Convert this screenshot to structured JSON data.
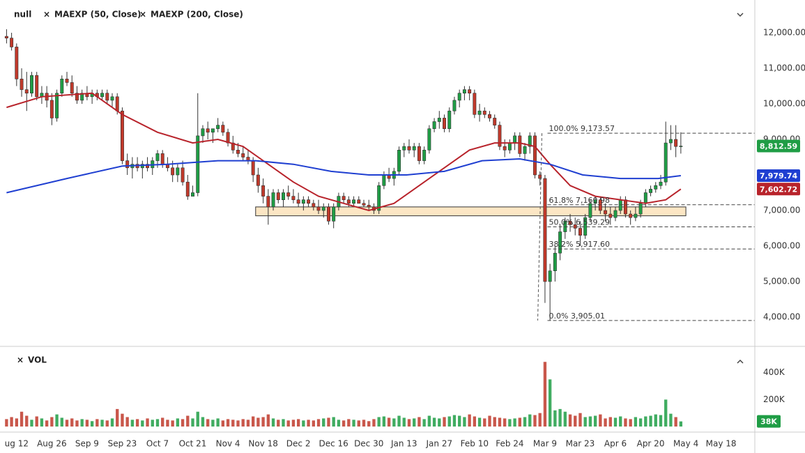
{
  "chart_data": {
    "type": "candlestick",
    "symbol": "null",
    "xlim": [
      -6.6,
      293.4
    ],
    "ylim": [
      3176,
      12922
    ],
    "xticks": [
      {
        "value": 0,
        "label": "ug 12"
      },
      {
        "value": 14,
        "label": "Aug 26"
      },
      {
        "value": 28,
        "label": "Sep 9"
      },
      {
        "value": 42,
        "label": "Sep 23"
      },
      {
        "value": 56,
        "label": "Oct 7"
      },
      {
        "value": 70,
        "label": "Oct 21"
      },
      {
        "value": 84,
        "label": "Nov 4"
      },
      {
        "value": 98,
        "label": "Nov 18"
      },
      {
        "value": 112,
        "label": "Dec 2"
      },
      {
        "value": 126,
        "label": "Dec 16"
      },
      {
        "value": 140,
        "label": "Dec 30"
      },
      {
        "value": 154,
        "label": "Jan 13"
      },
      {
        "value": 168,
        "label": "Jan 27"
      },
      {
        "value": 182,
        "label": "Feb 10"
      },
      {
        "value": 196,
        "label": "Feb 24"
      },
      {
        "value": 210,
        "label": "Mar 9"
      },
      {
        "value": 224,
        "label": "Mar 23"
      },
      {
        "value": 238,
        "label": "Apr 6"
      },
      {
        "value": 252,
        "label": "Apr 20"
      },
      {
        "value": 266,
        "label": "May 4"
      },
      {
        "value": 280,
        "label": "May 18"
      }
    ],
    "yticks": [
      {
        "value": 4000,
        "label": "4,000.00"
      },
      {
        "value": 5000,
        "label": "5,000.00"
      },
      {
        "value": 6000,
        "label": "6,000.00"
      },
      {
        "value": 7000,
        "label": "7,000.00"
      },
      {
        "value": 8000,
        "label": "8,000.00"
      },
      {
        "value": 9000,
        "label": "9,000.00"
      },
      {
        "value": 10000,
        "label": "10,000.00"
      },
      {
        "value": 11000,
        "label": "11,000.00"
      },
      {
        "value": 12000,
        "label": "12,000.00"
      }
    ],
    "grid": true,
    "up_color": "#1f9d45",
    "down_color": "#c0392b",
    "candles": [
      [
        -4,
        11900,
        12100,
        11700,
        11850
      ],
      [
        -2,
        11850,
        12000,
        11500,
        11600
      ],
      [
        0,
        11600,
        11700,
        10500,
        10700
      ],
      [
        2,
        10700,
        11000,
        10200,
        10400
      ],
      [
        4,
        10400,
        10900,
        9800,
        10300
      ],
      [
        6,
        10300,
        10900,
        10200,
        10800
      ],
      [
        8,
        10800,
        10900,
        10100,
        10200
      ],
      [
        10,
        10200,
        10500,
        10000,
        10300
      ],
      [
        12,
        10300,
        10500,
        9900,
        10100
      ],
      [
        14,
        10100,
        10300,
        9400,
        9600
      ],
      [
        16,
        9600,
        10400,
        9500,
        10300
      ],
      [
        18,
        10300,
        10800,
        10200,
        10700
      ],
      [
        20,
        10700,
        10900,
        10500,
        10600
      ],
      [
        22,
        10600,
        10800,
        10200,
        10300
      ],
      [
        24,
        10300,
        10500,
        10000,
        10100
      ],
      [
        26,
        10100,
        10400,
        10000,
        10300
      ],
      [
        28,
        10300,
        10500,
        10100,
        10200
      ],
      [
        30,
        10200,
        10400,
        10000,
        10300
      ],
      [
        32,
        10300,
        10400,
        10100,
        10200
      ],
      [
        34,
        10200,
        10400,
        10100,
        10300
      ],
      [
        36,
        10300,
        10400,
        10000,
        10100
      ],
      [
        38,
        10100,
        10300,
        9900,
        10200
      ],
      [
        40,
        10200,
        10300,
        9700,
        9800
      ],
      [
        42,
        9800,
        9900,
        8300,
        8400
      ],
      [
        44,
        8400,
        8600,
        8000,
        8200
      ],
      [
        46,
        8200,
        8500,
        7900,
        8300
      ],
      [
        48,
        8300,
        8500,
        8100,
        8200
      ],
      [
        50,
        8200,
        8400,
        7900,
        8300
      ],
      [
        52,
        8300,
        8500,
        8100,
        8200
      ],
      [
        54,
        8200,
        8500,
        8000,
        8400
      ],
      [
        56,
        8400,
        8700,
        8200,
        8600
      ],
      [
        58,
        8600,
        8700,
        8200,
        8300
      ],
      [
        60,
        8300,
        8500,
        8100,
        8200
      ],
      [
        62,
        8200,
        8400,
        7800,
        8000
      ],
      [
        64,
        8000,
        8300,
        7800,
        8200
      ],
      [
        66,
        8200,
        8400,
        7700,
        7800
      ],
      [
        68,
        7800,
        8000,
        7300,
        7400
      ],
      [
        70,
        7400,
        7700,
        7400,
        7500
      ],
      [
        72,
        7500,
        10300,
        7400,
        9100
      ],
      [
        74,
        9100,
        9400,
        8900,
        9300
      ],
      [
        76,
        9300,
        9500,
        9000,
        9200
      ],
      [
        78,
        9200,
        9300,
        8900,
        9300
      ],
      [
        80,
        9300,
        9600,
        9200,
        9400
      ],
      [
        82,
        9400,
        9500,
        9100,
        9200
      ],
      [
        84,
        9200,
        9300,
        8800,
        8900
      ],
      [
        86,
        8900,
        9100,
        8600,
        8700
      ],
      [
        88,
        8700,
        8900,
        8500,
        8600
      ],
      [
        90,
        8600,
        8800,
        8400,
        8500
      ],
      [
        92,
        8500,
        8700,
        8300,
        8400
      ],
      [
        94,
        8400,
        8500,
        7800,
        8000
      ],
      [
        96,
        8000,
        8200,
        7500,
        7700
      ],
      [
        98,
        7700,
        7900,
        7200,
        7400
      ],
      [
        100,
        7400,
        7600,
        6600,
        7100
      ],
      [
        102,
        7100,
        7600,
        7000,
        7500
      ],
      [
        104,
        7500,
        7600,
        7200,
        7300
      ],
      [
        106,
        7300,
        7600,
        7100,
        7500
      ],
      [
        108,
        7500,
        7700,
        7300,
        7400
      ],
      [
        110,
        7400,
        7600,
        7200,
        7300
      ],
      [
        112,
        7300,
        7500,
        7100,
        7200
      ],
      [
        114,
        7200,
        7400,
        7000,
        7300
      ],
      [
        116,
        7300,
        7400,
        7100,
        7200
      ],
      [
        118,
        7200,
        7300,
        7000,
        7100
      ],
      [
        120,
        7100,
        7300,
        6900,
        7000
      ],
      [
        122,
        7000,
        7200,
        6800,
        7100
      ],
      [
        124,
        7100,
        7200,
        6600,
        6700
      ],
      [
        126,
        6700,
        7200,
        6500,
        7100
      ],
      [
        128,
        7100,
        7500,
        7000,
        7400
      ],
      [
        130,
        7400,
        7500,
        7200,
        7300
      ],
      [
        132,
        7300,
        7400,
        7100,
        7200
      ],
      [
        134,
        7200,
        7400,
        7100,
        7300
      ],
      [
        136,
        7300,
        7400,
        7200,
        7200
      ],
      [
        138,
        7200,
        7300,
        7100,
        7150
      ],
      [
        140,
        7150,
        7300,
        7000,
        7100
      ],
      [
        142,
        7100,
        7200,
        6900,
        7000
      ],
      [
        144,
        7000,
        7800,
        6900,
        7700
      ],
      [
        146,
        7700,
        8100,
        7600,
        8000
      ],
      [
        148,
        8000,
        8200,
        7800,
        7900
      ],
      [
        150,
        7900,
        8200,
        7700,
        8100
      ],
      [
        152,
        8100,
        8800,
        8000,
        8700
      ],
      [
        154,
        8700,
        8900,
        8500,
        8800
      ],
      [
        156,
        8800,
        9000,
        8600,
        8700
      ],
      [
        158,
        8700,
        8900,
        8500,
        8800
      ],
      [
        160,
        8800,
        8900,
        8300,
        8400
      ],
      [
        162,
        8400,
        8800,
        8300,
        8700
      ],
      [
        164,
        8700,
        9400,
        8600,
        9300
      ],
      [
        166,
        9300,
        9600,
        9200,
        9500
      ],
      [
        168,
        9500,
        9800,
        9300,
        9600
      ],
      [
        170,
        9600,
        9700,
        9200,
        9300
      ],
      [
        172,
        9300,
        9900,
        9200,
        9800
      ],
      [
        174,
        9800,
        10200,
        9700,
        10100
      ],
      [
        176,
        10100,
        10400,
        9900,
        10300
      ],
      [
        178,
        10300,
        10500,
        10100,
        10400
      ],
      [
        180,
        10400,
        10500,
        10100,
        10300
      ],
      [
        182,
        10300,
        10400,
        9600,
        9700
      ],
      [
        184,
        9700,
        10000,
        9500,
        9800
      ],
      [
        186,
        9800,
        9900,
        9600,
        9700
      ],
      [
        188,
        9700,
        9800,
        9500,
        9600
      ],
      [
        190,
        9600,
        9700,
        9300,
        9400
      ],
      [
        192,
        9400,
        9500,
        8700,
        8800
      ],
      [
        194,
        8800,
        9000,
        8500,
        8700
      ],
      [
        196,
        8700,
        9000,
        8600,
        8900
      ],
      [
        198,
        8900,
        9200,
        8700,
        9100
      ],
      [
        200,
        9100,
        9200,
        8500,
        8600
      ],
      [
        202,
        8600,
        8900,
        8400,
        8800
      ],
      [
        204,
        8800,
        9200,
        8600,
        9100
      ],
      [
        206,
        9100,
        9200,
        7900,
        8000
      ],
      [
        208,
        8000,
        8100,
        7700,
        7900
      ],
      [
        210,
        7900,
        8000,
        4400,
        5000
      ],
      [
        212,
        5000,
        5500,
        3905,
        5300
      ],
      [
        214,
        5300,
        6000,
        5000,
        5800
      ],
      [
        216,
        5800,
        6600,
        5600,
        6400
      ],
      [
        218,
        6400,
        6800,
        6200,
        6700
      ],
      [
        220,
        6700,
        6900,
        6400,
        6600
      ],
      [
        222,
        6600,
        6800,
        6300,
        6500
      ],
      [
        224,
        6500,
        6700,
        6000,
        6300
      ],
      [
        226,
        6300,
        6900,
        6200,
        6800
      ],
      [
        228,
        6800,
        7300,
        6700,
        7200
      ],
      [
        230,
        7200,
        7400,
        7000,
        7300
      ],
      [
        232,
        7300,
        7400,
        6900,
        7000
      ],
      [
        234,
        7000,
        7200,
        6700,
        6900
      ],
      [
        236,
        6900,
        7100,
        6600,
        6800
      ],
      [
        238,
        6800,
        7100,
        6700,
        7000
      ],
      [
        240,
        7000,
        7400,
        6900,
        7300
      ],
      [
        242,
        7300,
        7400,
        6800,
        6900
      ],
      [
        244,
        6900,
        7000,
        6600,
        6800
      ],
      [
        246,
        6800,
        7100,
        6700,
        6900
      ],
      [
        248,
        6900,
        7300,
        6800,
        7200
      ],
      [
        250,
        7200,
        7600,
        7100,
        7500
      ],
      [
        252,
        7500,
        7700,
        7400,
        7600
      ],
      [
        254,
        7600,
        7800,
        7500,
        7700
      ],
      [
        256,
        7700,
        8000,
        7600,
        7800
      ],
      [
        258,
        7800,
        9500,
        7700,
        8900
      ],
      [
        260,
        8900,
        9400,
        8700,
        9000
      ],
      [
        262,
        9000,
        9400,
        8500,
        8800
      ],
      [
        264,
        8800,
        9200,
        8600,
        8812.59
      ]
    ],
    "series": [
      {
        "name": "MAEXP (50, Close)",
        "color": "#b8232b",
        "last_label": "7,602.72",
        "x": [
          -4,
          10,
          30,
          42,
          56,
          70,
          80,
          90,
          100,
          110,
          120,
          130,
          140,
          150,
          160,
          170,
          180,
          190,
          200,
          206,
          212,
          220,
          230,
          240,
          250,
          258,
          264
        ],
        "values": [
          9900,
          10200,
          10300,
          9700,
          9200,
          8900,
          9000,
          8800,
          8300,
          7800,
          7400,
          7200,
          7000,
          7200,
          7700,
          8200,
          8700,
          8900,
          8900,
          8800,
          8300,
          7700,
          7400,
          7300,
          7200,
          7300,
          7602.72
        ]
      },
      {
        "name": "MAEXP (200, Close)",
        "color": "#1f3fd1",
        "last_label": "7,979.74",
        "x": [
          -4,
          20,
          42,
          60,
          80,
          95,
          110,
          125,
          140,
          155,
          170,
          185,
          200,
          212,
          225,
          240,
          255,
          264
        ],
        "values": [
          7500,
          7900,
          8250,
          8300,
          8400,
          8400,
          8300,
          8100,
          8000,
          8000,
          8100,
          8400,
          8450,
          8300,
          8000,
          7900,
          7900,
          7979.74
        ]
      }
    ],
    "last_price": {
      "value": 8812.59,
      "label": "8,812.59"
    },
    "zone": {
      "from": 6850,
      "to": 7100,
      "x": [
        95,
        266
      ],
      "color": "#fce6c4"
    },
    "fib": {
      "start": 211,
      "levels": [
        {
          "value": 9173.57,
          "label": "100.0% 9,173.57"
        },
        {
          "value": 7160.98,
          "label": "61.8% 7,160.98"
        },
        {
          "value": 6539.29,
          "label": "50.0% 6,539.29"
        },
        {
          "value": 5917.6,
          "label": "38.2% 5,917.60"
        },
        {
          "value": 3905.01,
          "label": "0.0% 3,905.01"
        }
      ]
    },
    "volume": {
      "name": "VOL",
      "ylim": [
        0,
        590000
      ],
      "yticks": [
        {
          "value": 200000,
          "label": "200K"
        },
        {
          "value": 400000,
          "label": "400K"
        }
      ],
      "last": {
        "value": 38000,
        "label": "38K"
      },
      "values": [
        55000,
        70000,
        60000,
        110000,
        80000,
        50000,
        75000,
        60000,
        45000,
        70000,
        90000,
        65000,
        50000,
        60000,
        45000,
        55000,
        50000,
        40000,
        55000,
        50000,
        45000,
        60000,
        130000,
        95000,
        70000,
        50000,
        55000,
        45000,
        60000,
        50000,
        55000,
        65000,
        50000,
        45000,
        60000,
        55000,
        80000,
        60000,
        110000,
        70000,
        55000,
        50000,
        60000,
        45000,
        55000,
        50000,
        45000,
        55000,
        50000,
        75000,
        65000,
        70000,
        90000,
        60000,
        50000,
        55000,
        45000,
        50000,
        55000,
        45000,
        50000,
        45000,
        55000,
        60000,
        65000,
        70000,
        50000,
        45000,
        55000,
        50000,
        45000,
        50000,
        40000,
        55000,
        70000,
        75000,
        65000,
        60000,
        80000,
        65000,
        55000,
        60000,
        70000,
        55000,
        80000,
        65000,
        60000,
        70000,
        75000,
        85000,
        80000,
        70000,
        90000,
        75000,
        65000,
        60000,
        80000,
        70000,
        65000,
        60000,
        55000,
        60000,
        65000,
        70000,
        90000,
        85000,
        100000,
        480000,
        350000,
        120000,
        130000,
        110000,
        90000,
        80000,
        100000,
        70000,
        75000,
        80000,
        90000,
        60000,
        70000,
        65000,
        75000,
        60000,
        55000,
        70000,
        60000,
        75000,
        80000,
        90000,
        85000,
        200000,
        95000,
        70000,
        38000
      ]
    }
  }
}
